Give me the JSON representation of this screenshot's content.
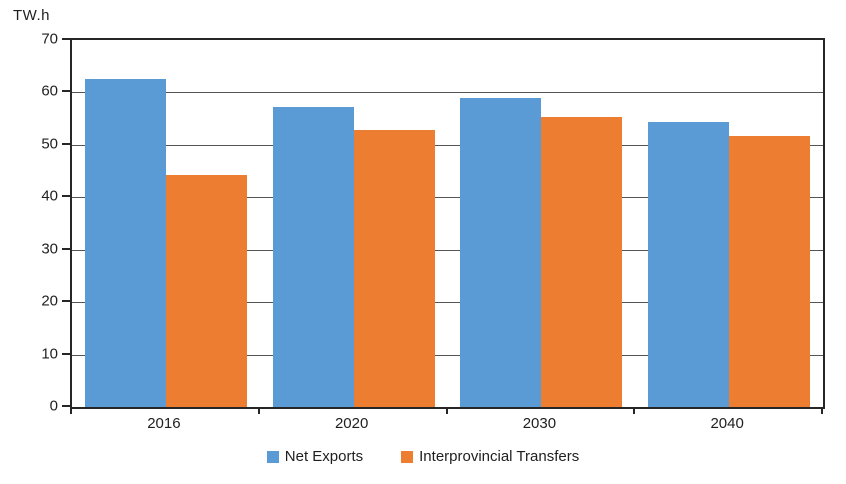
{
  "chart_data": {
    "type": "bar",
    "title": "",
    "ylabel": "TW.h",
    "xlabel": "",
    "categories": [
      "2016",
      "2020",
      "2030",
      "2040"
    ],
    "series": [
      {
        "name": "Net Exports",
        "color": "#5B9BD5",
        "values": [
          62.6,
          57.3,
          58.9,
          54.4
        ]
      },
      {
        "name": "Interprovincial Transfers",
        "color": "#ED7D31",
        "values": [
          44.2,
          52.8,
          55.4,
          51.6
        ]
      }
    ],
    "ylim": [
      0,
      70
    ],
    "yticks": [
      0,
      10,
      20,
      30,
      40,
      50,
      60,
      70
    ],
    "grid": true,
    "legend_position": "bottom"
  },
  "colors": {
    "axis": "#262626",
    "gridline": "#555555",
    "text": "#1f1f1f",
    "background": "#ffffff"
  }
}
